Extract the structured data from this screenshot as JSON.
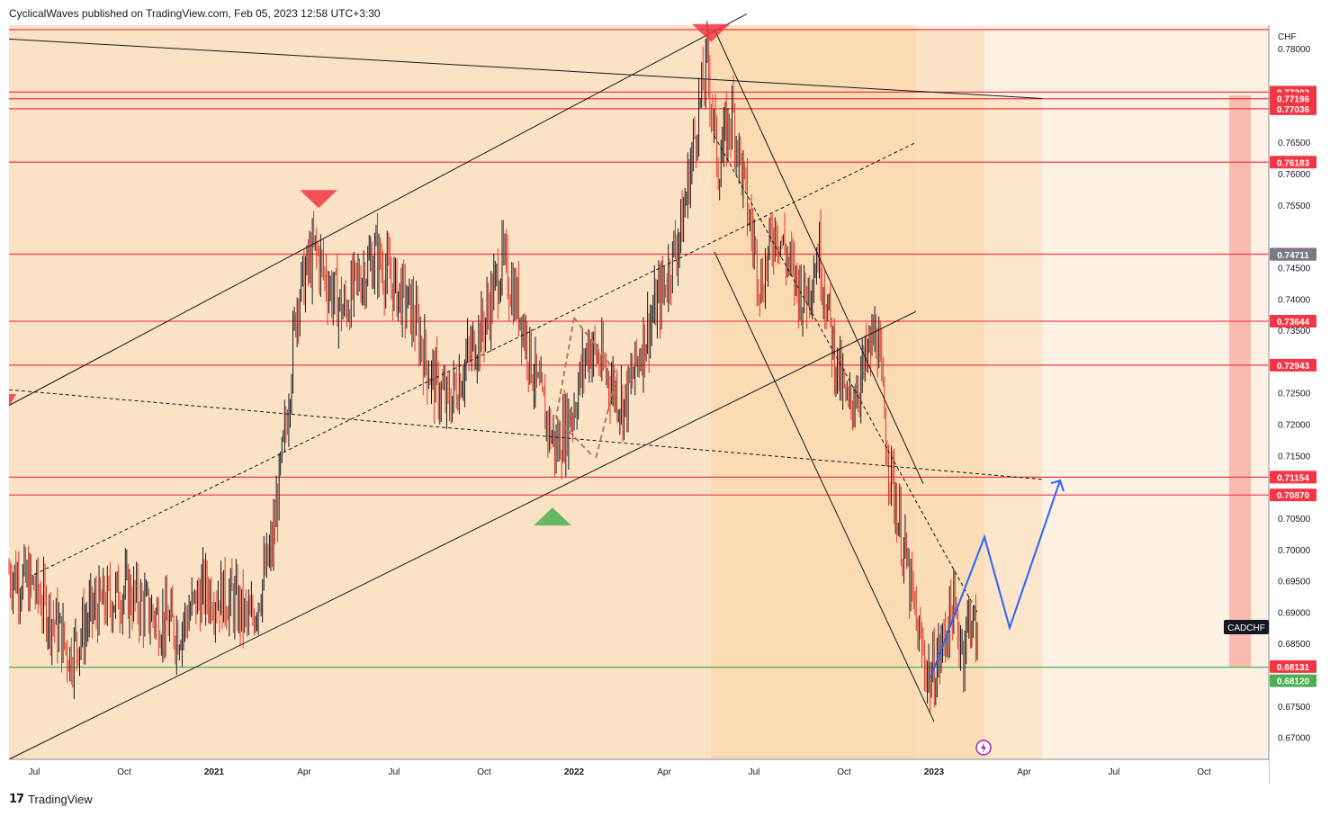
{
  "header": {
    "published_text": "CyclicalWaves published on TradingView.com, Feb 05, 2023 12:58 UTC+3:30"
  },
  "footer": {
    "logo_mark": "17",
    "logo_text": "TradingView"
  },
  "chart_data": {
    "type": "candlestick",
    "symbol": "CADCHF",
    "currency": "CHF",
    "x_tick_labels": [
      "Jul",
      "Oct",
      "2021",
      "Apr",
      "Jul",
      "Oct",
      "2022",
      "Apr",
      "Jul",
      "Oct",
      "2023",
      "Apr",
      "Jul",
      "Oct"
    ],
    "x_tick_months": [
      2020.5,
      2020.75,
      2021.0,
      2021.25,
      2021.5,
      2021.75,
      2022.0,
      2022.25,
      2022.5,
      2022.75,
      2023.0,
      2023.25,
      2023.5,
      2023.75
    ],
    "ylim": [
      0.6665,
      0.7837
    ],
    "y_ticks": [
      "0.78000",
      "0.76500",
      "0.76000",
      "0.75500",
      "0.74500",
      "0.74000",
      "0.73500",
      "0.72500",
      "0.72000",
      "0.71500",
      "0.70500",
      "0.70000",
      "0.69500",
      "0.69000",
      "0.68500",
      "0.67500",
      "0.67000"
    ],
    "horizontal_levels": [
      {
        "label": "0.77302",
        "value": 0.77302,
        "color": "#f23645"
      },
      {
        "label": "0.77196",
        "value": 0.77196,
        "color": "#f23645"
      },
      {
        "label": "0.77036",
        "value": 0.77036,
        "color": "#f23645"
      },
      {
        "label": "0.76183",
        "value": 0.76183,
        "color": "#f23645"
      },
      {
        "label": "0.74715",
        "value": 0.74715,
        "color": "#f23645"
      },
      {
        "label": "0.73644",
        "value": 0.73644,
        "color": "#f23645"
      },
      {
        "label": "0.72943",
        "value": 0.72943,
        "color": "#f23645"
      },
      {
        "label": "0.71154",
        "value": 0.71154,
        "color": "#f23645"
      },
      {
        "label": "0.70870",
        "value": 0.7087,
        "color": "#f23645"
      }
    ],
    "top_line_value": 0.783,
    "support_level": {
      "label": "0.68120",
      "value": 0.6812,
      "color": "#4caf50"
    },
    "last_close": {
      "label": "0.68131",
      "value": 0.68131,
      "color": "#f23645"
    },
    "prev_close_marker": {
      "label": "0.74711",
      "value": 0.74711,
      "color": "#787b86"
    },
    "ticker_label": "CADCHF",
    "price_path": [
      [
        2020.43,
        0.6965
      ],
      [
        2020.5,
        0.694
      ],
      [
        2020.56,
        0.688
      ],
      [
        2020.6,
        0.683
      ],
      [
        2020.66,
        0.69
      ],
      [
        2020.75,
        0.6935
      ],
      [
        2020.82,
        0.69
      ],
      [
        2020.9,
        0.687
      ],
      [
        2020.97,
        0.6935
      ],
      [
        2021.05,
        0.692
      ],
      [
        2021.1,
        0.688
      ],
      [
        2021.16,
        0.7
      ],
      [
        2021.2,
        0.72
      ],
      [
        2021.23,
        0.74
      ],
      [
        2021.28,
        0.748
      ],
      [
        2021.32,
        0.742
      ],
      [
        2021.36,
        0.738
      ],
      [
        2021.4,
        0.743
      ],
      [
        2021.45,
        0.747
      ],
      [
        2021.5,
        0.742
      ],
      [
        2021.55,
        0.738
      ],
      [
        2021.6,
        0.728
      ],
      [
        2021.65,
        0.723
      ],
      [
        2021.7,
        0.73
      ],
      [
        2021.75,
        0.736
      ],
      [
        2021.8,
        0.746
      ],
      [
        2021.85,
        0.738
      ],
      [
        2021.9,
        0.725
      ],
      [
        2021.95,
        0.716
      ],
      [
        2022.0,
        0.723
      ],
      [
        2022.04,
        0.733
      ],
      [
        2022.09,
        0.728
      ],
      [
        2022.14,
        0.723
      ],
      [
        2022.19,
        0.733
      ],
      [
        2022.25,
        0.742
      ],
      [
        2022.3,
        0.752
      ],
      [
        2022.34,
        0.768
      ],
      [
        2022.37,
        0.778
      ],
      [
        2022.4,
        0.761
      ],
      [
        2022.44,
        0.77
      ],
      [
        2022.48,
        0.755
      ],
      [
        2022.52,
        0.742
      ],
      [
        2022.56,
        0.752
      ],
      [
        2022.6,
        0.745
      ],
      [
        2022.64,
        0.74
      ],
      [
        2022.68,
        0.748
      ],
      [
        2022.72,
        0.732
      ],
      [
        2022.76,
        0.722
      ],
      [
        2022.8,
        0.728
      ],
      [
        2022.84,
        0.735
      ],
      [
        2022.87,
        0.716
      ],
      [
        2022.9,
        0.705
      ],
      [
        2022.93,
        0.695
      ],
      [
        2022.96,
        0.685
      ],
      [
        2022.99,
        0.679
      ],
      [
        2023.02,
        0.684
      ],
      [
        2023.05,
        0.691
      ],
      [
        2023.08,
        0.684
      ],
      [
        2023.1,
        0.69
      ],
      [
        2023.12,
        0.685
      ]
    ],
    "projection_path": [
      [
        2022.99,
        0.6795
      ],
      [
        2023.14,
        0.702
      ],
      [
        2023.21,
        0.6875
      ],
      [
        2023.35,
        0.711
      ]
    ],
    "top_markers": [
      {
        "x": 2021.29,
        "y": 0.7545
      },
      {
        "x": 2022.38,
        "y": 0.781
      }
    ],
    "bottom_markers": [
      {
        "x": 2021.94,
        "y": 0.7067
      }
    ]
  }
}
